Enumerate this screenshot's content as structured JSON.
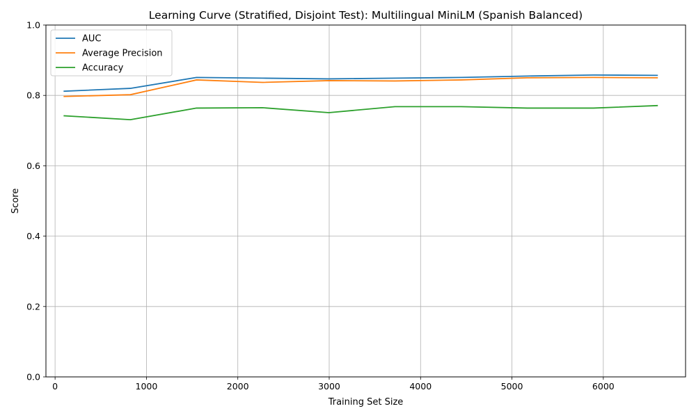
{
  "chart_data": {
    "type": "line",
    "title": "Learning Curve (Stratified, Disjoint Test): Multilingual MiniLM (Spanish Balanced)",
    "xlabel": "Training Set Size",
    "ylabel": "Score",
    "xlim": [
      -100,
      6900
    ],
    "ylim": [
      0.0,
      1.0
    ],
    "xticks": [
      0,
      1000,
      2000,
      3000,
      4000,
      5000,
      6000
    ],
    "xtick_labels": [
      "0",
      "1000",
      "2000",
      "3000",
      "4000",
      "5000",
      "6000"
    ],
    "yticks": [
      0.0,
      0.2,
      0.4,
      0.6,
      0.8,
      1.0
    ],
    "ytick_labels": [
      "0.0",
      "0.2",
      "0.4",
      "0.6",
      "0.8",
      "1.0"
    ],
    "grid": true,
    "legend_position": "top-left",
    "x": [
      100,
      824,
      1548,
      2272,
      2996,
      3720,
      4444,
      5168,
      5892,
      6590
    ],
    "series": [
      {
        "name": "AUC",
        "color": "#1f77b4",
        "values": [
          0.812,
          0.82,
          0.851,
          0.849,
          0.847,
          0.849,
          0.851,
          0.855,
          0.858,
          0.857
        ]
      },
      {
        "name": "Average Precision",
        "color": "#ff7f0e",
        "values": [
          0.797,
          0.802,
          0.844,
          0.837,
          0.842,
          0.841,
          0.844,
          0.85,
          0.851,
          0.85
        ]
      },
      {
        "name": "Accuracy",
        "color": "#2ca02c",
        "values": [
          0.742,
          0.731,
          0.764,
          0.765,
          0.751,
          0.768,
          0.768,
          0.764,
          0.764,
          0.771
        ]
      }
    ]
  }
}
